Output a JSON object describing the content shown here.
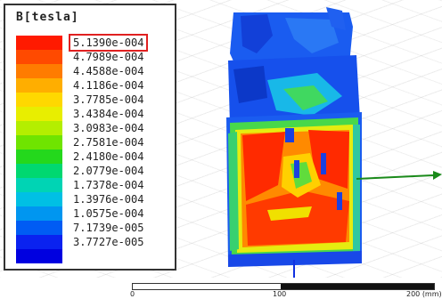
{
  "legend": {
    "title": "B[tesla]",
    "selected_index": 0,
    "entries": [
      {
        "value": "5.1390e-004",
        "color": "#ff1a00"
      },
      {
        "value": "4.7989e-004",
        "color": "#ff4a00"
      },
      {
        "value": "4.4588e-004",
        "color": "#ff7c00"
      },
      {
        "value": "4.1186e-004",
        "color": "#ffae00"
      },
      {
        "value": "3.7785e-004",
        "color": "#ffd800"
      },
      {
        "value": "3.4384e-004",
        "color": "#e8ee00"
      },
      {
        "value": "3.0983e-004",
        "color": "#b4ee00"
      },
      {
        "value": "2.7581e-004",
        "color": "#6fe400"
      },
      {
        "value": "2.4180e-004",
        "color": "#24d81c"
      },
      {
        "value": "2.0779e-004",
        "color": "#00d870"
      },
      {
        "value": "1.7378e-004",
        "color": "#00d4b4"
      },
      {
        "value": "1.3976e-004",
        "color": "#00c0e4"
      },
      {
        "value": "1.0575e-004",
        "color": "#0096f0"
      },
      {
        "value": "7.1739e-005",
        "color": "#005cf4"
      },
      {
        "value": "3.7727e-005",
        "color": "#0a22f0"
      },
      {
        "value": "",
        "color": "#0000e0"
      }
    ]
  },
  "ruler": {
    "labels": [
      "0",
      "100",
      "200 (mm)"
    ]
  }
}
